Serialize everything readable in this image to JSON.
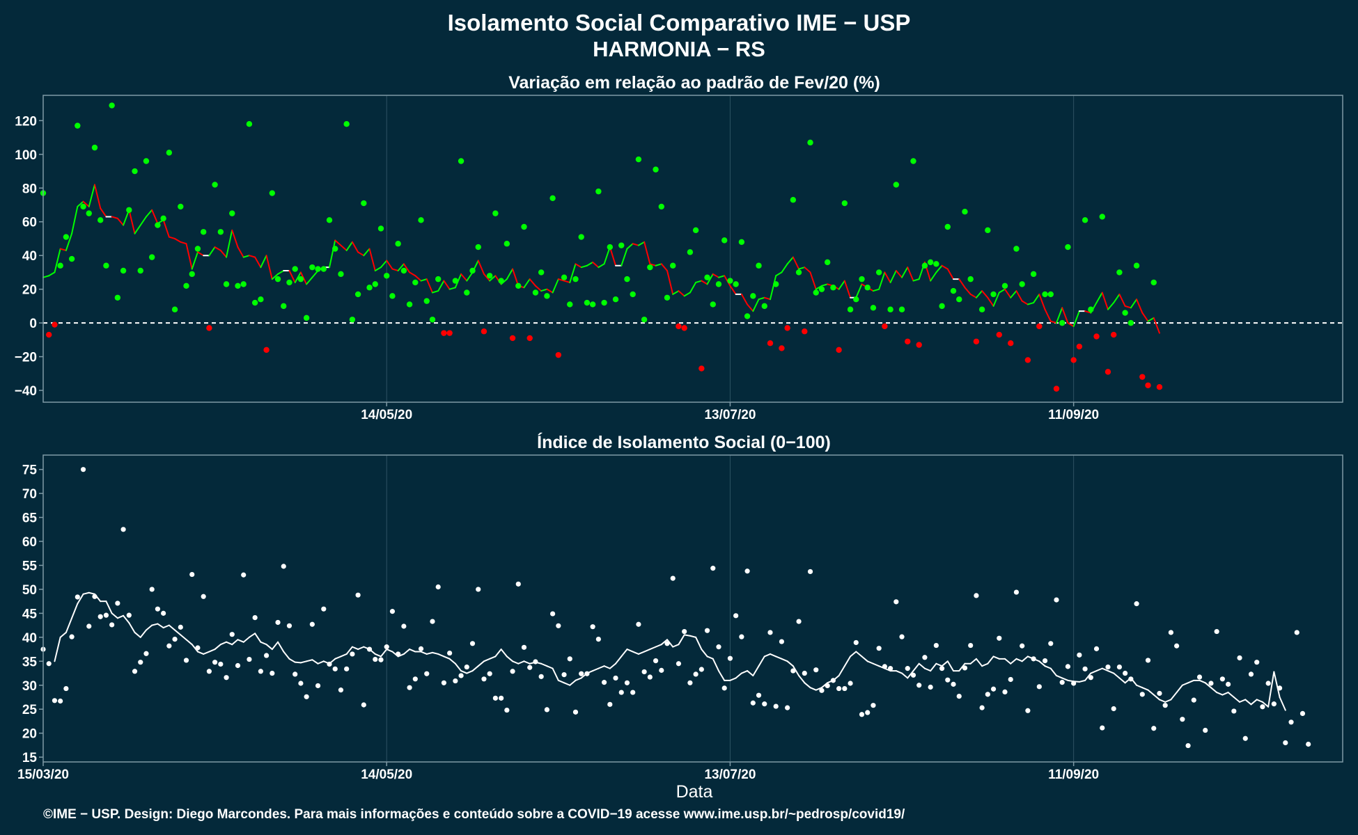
{
  "page": {
    "title_line1": "Isolamento Social Comparativo IME − USP",
    "title_line2": "HARMONIA − RS",
    "xlabel": "Data",
    "footer": "©IME − USP. Design: Diego Marcondes. Para mais informações e conteúdo sobre a COVID−19 acesse www.ime.usp.br/~pedrosp/covid19/"
  },
  "colors": {
    "background": "#04293a",
    "panel_border": "#7f9aa6",
    "grid": "#2e5363",
    "positive": "#00ff00",
    "negative": "#ff0000",
    "index": "#ffffff",
    "zero_line": "#ffffff"
  },
  "chart_data": [
    {
      "type": "scatter",
      "title": "Variação em relação ao padrão de Fev/20 (%)",
      "ylim": [
        -47,
        135
      ],
      "yticks": [
        -40,
        -20,
        0,
        20,
        40,
        60,
        80,
        100,
        120
      ],
      "xticks": [
        {
          "day": 60,
          "label": "14/05/20"
        },
        {
          "day": 120,
          "label": "13/07/20"
        },
        {
          "day": 180,
          "label": "11/09/20"
        }
      ],
      "x_range_days": [
        0,
        227
      ],
      "reference_line": 0,
      "points_day0": 0,
      "points": [
        77,
        -7,
        -1,
        34,
        51,
        38,
        117,
        69,
        65,
        104,
        61,
        34,
        129,
        15,
        31,
        67,
        90,
        31,
        96,
        39,
        58,
        62,
        101,
        8,
        69,
        22,
        29,
        44,
        54,
        -3,
        82,
        54,
        23,
        65,
        22,
        23,
        118,
        12,
        14,
        -16,
        77,
        26,
        10,
        24,
        32,
        26,
        3,
        33,
        32,
        32,
        61,
        44,
        29,
        118,
        2,
        17,
        71,
        21,
        23,
        56,
        28,
        16,
        47,
        31,
        11,
        24,
        61,
        13,
        2,
        26,
        -6,
        -6,
        25,
        96,
        18,
        31,
        45,
        -5,
        28,
        65,
        25,
        47,
        -9,
        22,
        57,
        -9,
        18,
        30,
        16,
        74,
        -19,
        27,
        11,
        26,
        51,
        12,
        11,
        78,
        12,
        45,
        14,
        46,
        26,
        17,
        97,
        2,
        33,
        91,
        69,
        15,
        34,
        -2,
        -3,
        42,
        55,
        -27,
        27,
        11,
        23,
        49,
        25,
        23,
        48,
        4,
        16,
        34,
        10,
        -12,
        23,
        -15,
        -3,
        73,
        30,
        -5,
        107,
        18,
        20,
        36,
        21,
        -16,
        71,
        8,
        14,
        26,
        21,
        9,
        30,
        -2,
        8,
        82,
        8,
        -11,
        96,
        -13,
        34,
        36,
        35,
        10,
        57,
        19,
        14,
        66,
        26,
        -11,
        8,
        55,
        17,
        -7,
        22,
        -12,
        44,
        23,
        -22,
        29,
        -2,
        17,
        17,
        -39,
        0,
        45,
        -22,
        -14,
        61,
        8,
        -8,
        63,
        -29,
        -7,
        30,
        6,
        0,
        34,
        -32,
        -37,
        24,
        -38
      ],
      "smooth_day0": 0,
      "smooth": [
        27,
        28,
        30,
        44,
        43,
        53,
        69,
        72,
        69,
        82,
        68,
        63,
        63,
        62,
        58,
        67,
        53,
        58,
        63,
        67,
        59,
        61,
        51,
        50,
        48,
        47,
        32,
        42,
        40,
        40,
        45,
        43,
        39,
        55,
        45,
        39,
        40,
        39,
        33,
        40,
        26,
        29,
        31,
        31,
        24,
        30,
        23,
        27,
        31,
        33,
        33,
        49,
        46,
        43,
        48,
        42,
        40,
        44,
        31,
        33,
        37,
        32,
        31,
        35,
        30,
        28,
        25,
        26,
        18,
        19,
        25,
        20,
        21,
        29,
        25,
        30,
        37,
        29,
        25,
        28,
        23,
        26,
        32,
        22,
        21,
        26,
        22,
        19,
        20,
        18,
        26,
        25,
        24,
        35,
        33,
        34,
        36,
        33,
        35,
        45,
        34,
        34,
        44,
        47,
        46,
        48,
        35,
        34,
        35,
        31,
        17,
        19,
        16,
        18,
        24,
        25,
        23,
        29,
        27,
        28,
        22,
        17,
        17,
        11,
        7,
        14,
        15,
        14,
        28,
        30,
        35,
        39,
        32,
        33,
        30,
        20,
        22,
        23,
        22,
        20,
        25,
        15,
        15,
        23,
        21,
        19,
        20,
        30,
        24,
        31,
        27,
        33,
        25,
        26,
        36,
        25,
        30,
        34,
        32,
        26,
        26,
        21,
        17,
        15,
        19,
        15,
        10,
        18,
        20,
        15,
        19,
        13,
        11,
        12,
        17,
        8,
        1,
        0,
        9,
        0,
        -2,
        7,
        7,
        6,
        12,
        18,
        8,
        12,
        17,
        10,
        9,
        14,
        6,
        1,
        3,
        -6
      ]
    },
    {
      "type": "scatter",
      "title": "Índice de Isolamento Social (0−100)",
      "ylim": [
        14,
        78
      ],
      "yticks": [
        15,
        20,
        25,
        30,
        35,
        40,
        45,
        50,
        55,
        60,
        65,
        70,
        75
      ],
      "xticks": [
        {
          "day": 0,
          "label": "15/03/20"
        },
        {
          "day": 60,
          "label": "14/05/20"
        },
        {
          "day": 120,
          "label": "13/07/20"
        },
        {
          "day": 180,
          "label": "11/09/20"
        }
      ],
      "x_range_days": [
        0,
        227
      ],
      "points_day0": 0,
      "points": [
        37.5,
        34.5,
        26.8,
        26.7,
        29.3,
        40.1,
        48.4,
        75.0,
        42.3,
        48.5,
        44.3,
        44.6,
        42.6,
        47.1,
        62.5,
        44.6,
        32.9,
        34.8,
        36.6,
        50.0,
        45.9,
        45.0,
        38.2,
        39.6,
        42.1,
        35.2,
        53.1,
        37.8,
        48.5,
        32.9,
        34.8,
        34.4,
        31.6,
        40.6,
        34.1,
        53.0,
        35.4,
        44.1,
        32.9,
        36.2,
        32.5,
        43.1,
        54.8,
        42.4,
        32.3,
        30.4,
        27.6,
        42.7,
        29.9,
        45.9,
        34.4,
        33.4,
        29.0,
        33.4,
        36.5,
        48.8,
        25.9,
        37.5,
        35.4,
        35.3,
        38.0,
        45.4,
        36.5,
        42.3,
        29.5,
        31.3,
        37.6,
        32.4,
        43.3,
        50.5,
        30.5,
        36.7,
        30.9,
        32.0,
        33.8,
        38.7,
        50.0,
        31.3,
        32.4,
        27.3,
        27.3,
        24.8,
        32.9,
        51.1,
        37.9,
        33.7,
        34.9,
        31.8,
        24.9,
        44.9,
        42.4,
        32.2,
        35.5,
        24.4,
        32.4,
        32.4,
        42.2,
        39.6,
        30.6,
        26.0,
        31.5,
        28.5,
        30.5,
        28.5,
        42.7,
        32.8,
        31.7,
        35.1,
        33.1,
        38.7,
        52.3,
        34.5,
        41.2,
        30.5,
        32.3,
        33.3,
        41.4,
        54.4,
        38.0,
        29.4,
        35.6,
        44.5,
        40.1,
        53.8,
        26.3,
        27.9,
        26.1,
        41.0,
        25.6,
        39.1,
        25.3,
        33.0,
        43.3,
        32.5,
        53.7,
        33.2,
        28.9,
        29.9,
        31.0,
        29.3,
        29.3,
        30.4,
        38.9,
        23.9,
        24.3,
        25.8,
        37.7,
        33.9,
        33.5,
        47.4,
        40.1,
        33.5,
        32.1,
        30.0,
        35.8,
        29.6,
        38.3,
        33.5,
        31.1,
        30.2,
        27.7,
        33.6,
        38.3,
        48.7,
        25.3,
        28.1,
        29.2,
        39.8,
        28.6,
        31.2,
        49.4,
        38.2,
        24.7,
        35.5,
        29.7,
        35.1,
        38.7,
        47.8,
        30.6,
        33.9,
        30.4,
        36.3,
        33.4,
        31.6,
        37.6,
        21.1,
        33.8,
        25.1,
        33.8,
        32.5,
        31.3,
        47.0,
        28.1,
        35.2,
        21.0,
        28.3,
        25.8,
        41.0,
        38.2,
        22.9,
        17.4,
        26.9,
        31.7,
        20.6,
        30.4,
        41.2,
        31.3,
        30.2,
        24.6,
        35.7,
        18.9,
        32.3,
        34.8,
        25.5,
        30.4,
        26.1,
        29.4,
        18.0,
        22.3,
        41.0,
        24.1,
        17.7
      ],
      "smooth_day0": 2,
      "smooth": [
        35.0,
        40.0,
        41.0,
        44.0,
        47.0,
        49.0,
        49.3,
        49.0,
        47.5,
        47.5,
        45.0,
        44.0,
        44.5,
        43.0,
        41.0,
        40.0,
        41.5,
        42.5,
        42.8,
        42.0,
        42.5,
        41.5,
        40.5,
        39.5,
        38.5,
        37.0,
        36.5,
        37.0,
        37.5,
        38.5,
        39.0,
        38.5,
        39.5,
        39.0,
        40.0,
        40.8,
        39.0,
        38.5,
        37.5,
        39.0,
        37.0,
        35.5,
        34.8,
        34.7,
        35.0,
        35.3,
        34.5,
        35.0,
        34.5,
        35.5,
        36.0,
        36.5,
        38.0,
        37.5,
        38.0,
        37.5,
        36.5,
        36.0,
        37.5,
        37.0,
        36.0,
        36.5,
        37.5,
        37.0,
        37.0,
        36.5,
        36.8,
        36.5,
        36.0,
        35.5,
        34.5,
        33.0,
        32.5,
        33.0,
        34.0,
        35.0,
        35.5,
        36.0,
        37.5,
        36.0,
        35.0,
        34.5,
        35.0,
        34.5,
        34.8,
        34.5,
        34.0,
        33.5,
        31.0,
        30.5,
        30.0,
        31.0,
        31.5,
        32.5,
        33.0,
        33.5,
        34.0,
        33.5,
        34.5,
        36.0,
        37.5,
        37.0,
        36.5,
        37.0,
        37.5,
        38.0,
        38.5,
        39.5,
        38.0,
        38.5,
        40.5,
        40.3,
        40.0,
        37.5,
        36.0,
        35.5,
        33.0,
        31.0,
        31.0,
        31.5,
        32.5,
        33.0,
        32.0,
        34.0,
        36.0,
        36.5,
        36.0,
        35.5,
        35.0,
        34.0,
        32.0,
        30.5,
        29.5,
        29.0,
        29.5,
        30.5,
        31.0,
        32.0,
        34.0,
        36.0,
        37.0,
        36.0,
        35.0,
        34.5,
        34.0,
        33.5,
        33.0,
        33.0,
        32.5,
        31.5,
        33.0,
        34.5,
        33.5,
        33.0,
        34.5,
        34.0,
        35.0,
        33.0,
        33.0,
        34.5,
        34.5,
        35.5,
        34.0,
        34.5,
        36.0,
        35.5,
        35.5,
        34.5,
        35.5,
        35.0,
        36.0,
        35.5,
        35.0,
        34.0,
        33.5,
        32.0,
        31.5,
        31.0,
        30.8,
        30.7,
        31.0,
        32.5,
        33.0,
        33.5,
        33.0,
        32.5,
        31.5,
        30.5,
        31.5,
        30.0,
        29.5,
        29.0,
        28.0,
        27.0,
        26.5,
        27.0,
        28.5,
        30.0,
        30.5,
        31.0,
        31.0,
        30.5,
        29.5,
        28.5,
        28.0,
        28.5,
        27.5,
        26.5,
        27.0,
        26.0,
        27.0,
        26.5,
        25.5,
        32.8,
        27.5,
        24.8
      ]
    }
  ]
}
